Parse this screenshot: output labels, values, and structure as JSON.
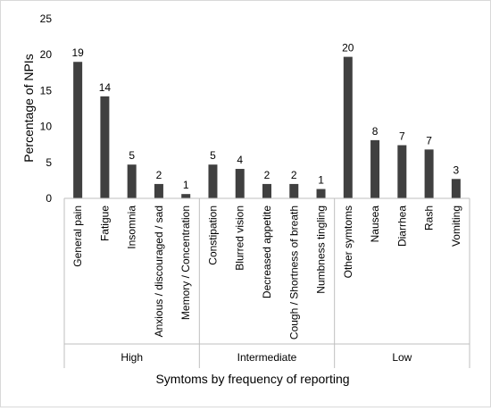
{
  "chart_data": {
    "type": "bar",
    "xlabel": "Symtoms by frequency of reporting",
    "ylabel": "Percentage of NPIs",
    "ylim": [
      0,
      25
    ],
    "yticks": [
      0,
      5,
      10,
      15,
      20,
      25
    ],
    "grid": false,
    "legend": "none",
    "bar_color": "#404040",
    "groups": [
      {
        "name": "High",
        "categories": [
          "General pain",
          "Fatigue",
          "Insomnia",
          "Anxious / discouraged / sad",
          "Memory / Concentration"
        ]
      },
      {
        "name": "Intermediate",
        "categories": [
          "Constipation",
          "Blurred vision",
          "Decreased appetite",
          "Cough / Shortness of breath",
          "Numbness tingling"
        ]
      },
      {
        "name": "Low",
        "categories": [
          "Other symtoms",
          "Nausea",
          "Diarrhea",
          "Rash",
          "Vomiting"
        ]
      }
    ],
    "categories": [
      "General pain",
      "Fatigue",
      "Insomnia",
      "Anxious / discouraged / sad",
      "Memory / Concentration",
      "Constipation",
      "Blurred vision",
      "Decreased appetite",
      "Cough / Shortness of breath",
      "Numbness tingling",
      "Other symtoms",
      "Nausea",
      "Diarrhea",
      "Rash",
      "Vomiting"
    ],
    "values": [
      19.0,
      14.2,
      4.7,
      2.0,
      0.6,
      4.7,
      4.1,
      2.0,
      2.0,
      1.3,
      19.7,
      8.1,
      7.4,
      6.8,
      2.7
    ],
    "data_labels": [
      "19",
      "14",
      "5",
      "2",
      "1",
      "5",
      "4",
      "2",
      "2",
      "1",
      "20",
      "8",
      "7",
      "7",
      "3"
    ]
  }
}
